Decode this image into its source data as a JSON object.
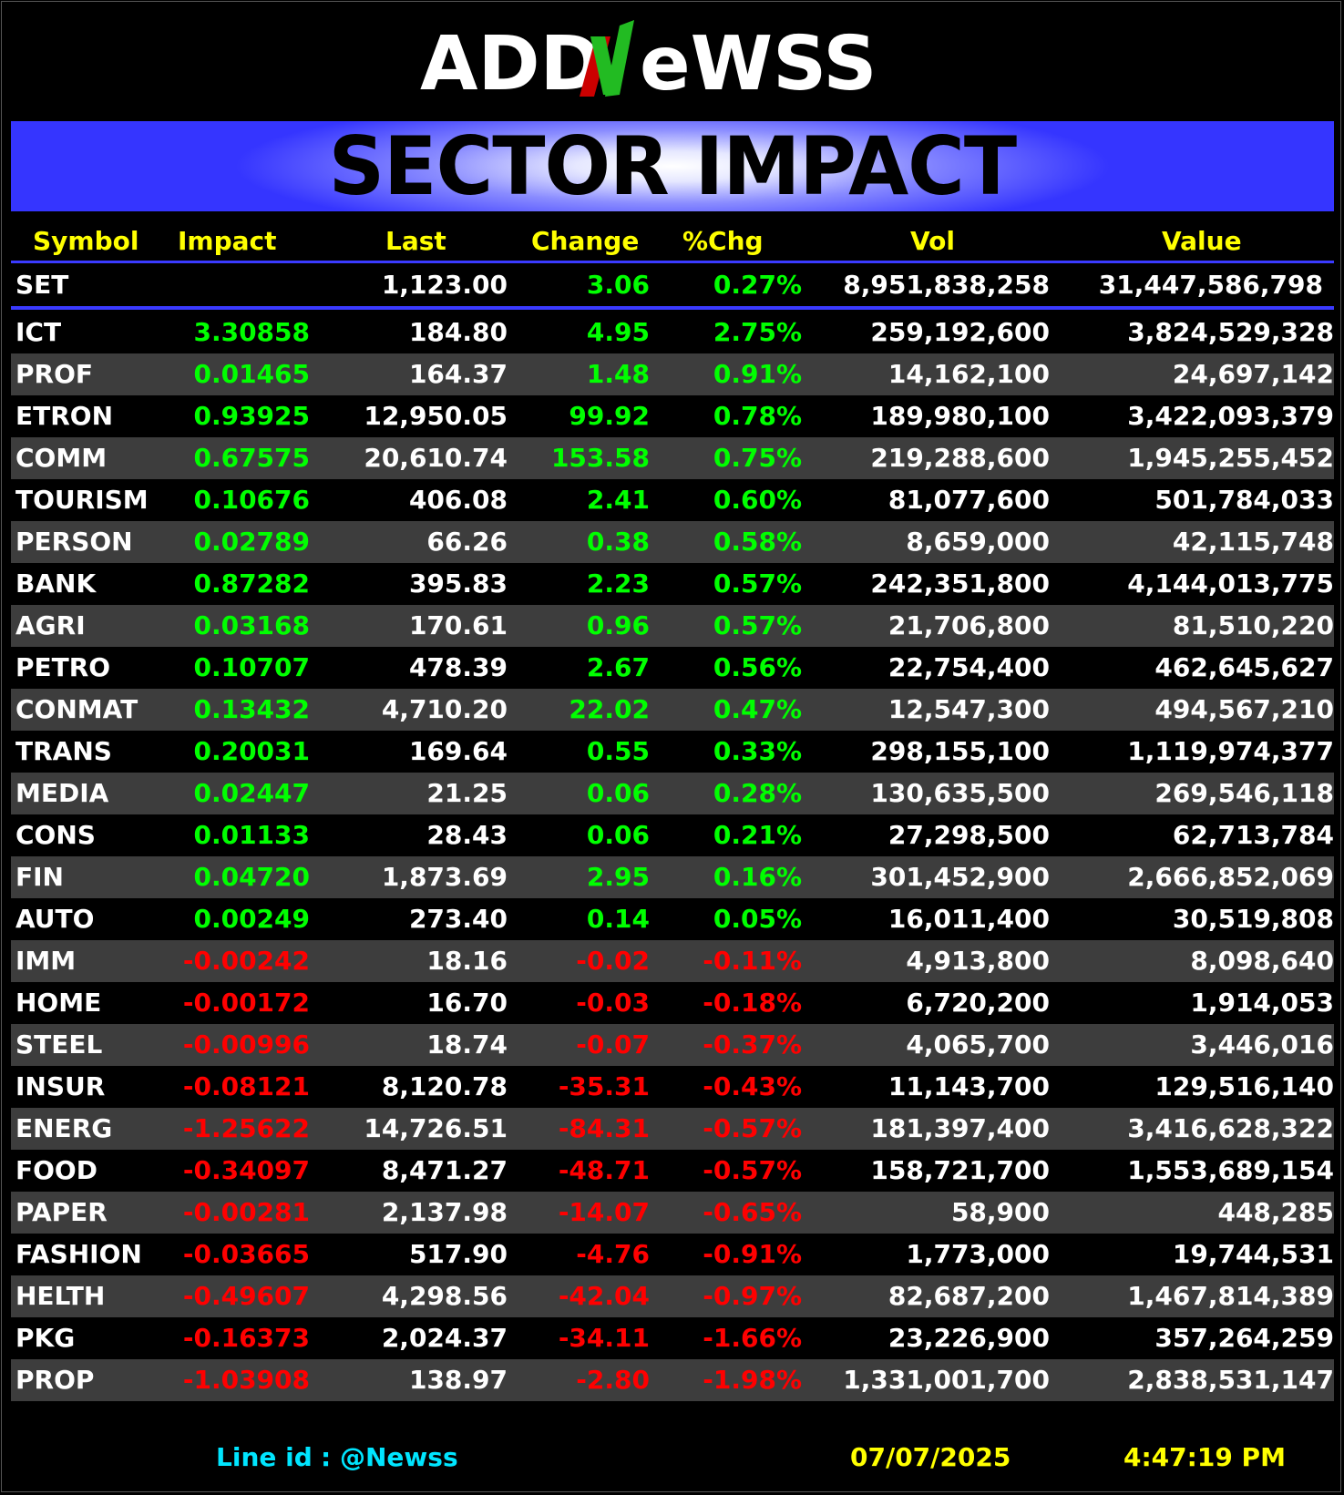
{
  "logo": {
    "text_left": "ADD",
    "text_right": "eWSS",
    "colors": {
      "white": "#ffffff",
      "green": "#22bb22",
      "red": "#cc0000"
    }
  },
  "title": "SECTOR IMPACT",
  "columns": [
    "Symbol",
    "Impact",
    "Last",
    "Change",
    "%Chg",
    "Vol",
    "Value"
  ],
  "index_row": {
    "symbol": "SET",
    "impact": "",
    "last": "1,123.00",
    "change": "3.06",
    "pct": "0.27%",
    "vol": "8,951,838,258",
    "value": "31,447,586,798"
  },
  "rows": [
    {
      "symbol": "ICT",
      "impact": "3.30858",
      "last": "184.80",
      "change": "4.95",
      "pct": "2.75%",
      "vol": "259,192,600",
      "value": "3,824,529,328",
      "dir": "pos"
    },
    {
      "symbol": "PROF",
      "impact": "0.01465",
      "last": "164.37",
      "change": "1.48",
      "pct": "0.91%",
      "vol": "14,162,100",
      "value": "24,697,142",
      "dir": "pos"
    },
    {
      "symbol": "ETRON",
      "impact": "0.93925",
      "last": "12,950.05",
      "change": "99.92",
      "pct": "0.78%",
      "vol": "189,980,100",
      "value": "3,422,093,379",
      "dir": "pos"
    },
    {
      "symbol": "COMM",
      "impact": "0.67575",
      "last": "20,610.74",
      "change": "153.58",
      "pct": "0.75%",
      "vol": "219,288,600",
      "value": "1,945,255,452",
      "dir": "pos"
    },
    {
      "symbol": "TOURISM",
      "impact": "0.10676",
      "last": "406.08",
      "change": "2.41",
      "pct": "0.60%",
      "vol": "81,077,600",
      "value": "501,784,033",
      "dir": "pos"
    },
    {
      "symbol": "PERSON",
      "impact": "0.02789",
      "last": "66.26",
      "change": "0.38",
      "pct": "0.58%",
      "vol": "8,659,000",
      "value": "42,115,748",
      "dir": "pos"
    },
    {
      "symbol": "BANK",
      "impact": "0.87282",
      "last": "395.83",
      "change": "2.23",
      "pct": "0.57%",
      "vol": "242,351,800",
      "value": "4,144,013,775",
      "dir": "pos"
    },
    {
      "symbol": "AGRI",
      "impact": "0.03168",
      "last": "170.61",
      "change": "0.96",
      "pct": "0.57%",
      "vol": "21,706,800",
      "value": "81,510,220",
      "dir": "pos"
    },
    {
      "symbol": "PETRO",
      "impact": "0.10707",
      "last": "478.39",
      "change": "2.67",
      "pct": "0.56%",
      "vol": "22,754,400",
      "value": "462,645,627",
      "dir": "pos"
    },
    {
      "symbol": "CONMAT",
      "impact": "0.13432",
      "last": "4,710.20",
      "change": "22.02",
      "pct": "0.47%",
      "vol": "12,547,300",
      "value": "494,567,210",
      "dir": "pos"
    },
    {
      "symbol": "TRANS",
      "impact": "0.20031",
      "last": "169.64",
      "change": "0.55",
      "pct": "0.33%",
      "vol": "298,155,100",
      "value": "1,119,974,377",
      "dir": "pos"
    },
    {
      "symbol": "MEDIA",
      "impact": "0.02447",
      "last": "21.25",
      "change": "0.06",
      "pct": "0.28%",
      "vol": "130,635,500",
      "value": "269,546,118",
      "dir": "pos"
    },
    {
      "symbol": "CONS",
      "impact": "0.01133",
      "last": "28.43",
      "change": "0.06",
      "pct": "0.21%",
      "vol": "27,298,500",
      "value": "62,713,784",
      "dir": "pos"
    },
    {
      "symbol": "FIN",
      "impact": "0.04720",
      "last": "1,873.69",
      "change": "2.95",
      "pct": "0.16%",
      "vol": "301,452,900",
      "value": "2,666,852,069",
      "dir": "pos"
    },
    {
      "symbol": "AUTO",
      "impact": "0.00249",
      "last": "273.40",
      "change": "0.14",
      "pct": "0.05%",
      "vol": "16,011,400",
      "value": "30,519,808",
      "dir": "pos"
    },
    {
      "symbol": "IMM",
      "impact": "-0.00242",
      "last": "18.16",
      "change": "-0.02",
      "pct": "-0.11%",
      "vol": "4,913,800",
      "value": "8,098,640",
      "dir": "neg"
    },
    {
      "symbol": "HOME",
      "impact": "-0.00172",
      "last": "16.70",
      "change": "-0.03",
      "pct": "-0.18%",
      "vol": "6,720,200",
      "value": "1,914,053",
      "dir": "neg"
    },
    {
      "symbol": "STEEL",
      "impact": "-0.00996",
      "last": "18.74",
      "change": "-0.07",
      "pct": "-0.37%",
      "vol": "4,065,700",
      "value": "3,446,016",
      "dir": "neg"
    },
    {
      "symbol": "INSUR",
      "impact": "-0.08121",
      "last": "8,120.78",
      "change": "-35.31",
      "pct": "-0.43%",
      "vol": "11,143,700",
      "value": "129,516,140",
      "dir": "neg"
    },
    {
      "symbol": "ENERG",
      "impact": "-1.25622",
      "last": "14,726.51",
      "change": "-84.31",
      "pct": "-0.57%",
      "vol": "181,397,400",
      "value": "3,416,628,322",
      "dir": "neg"
    },
    {
      "symbol": "FOOD",
      "impact": "-0.34097",
      "last": "8,471.27",
      "change": "-48.71",
      "pct": "-0.57%",
      "vol": "158,721,700",
      "value": "1,553,689,154",
      "dir": "neg"
    },
    {
      "symbol": "PAPER",
      "impact": "-0.00281",
      "last": "2,137.98",
      "change": "-14.07",
      "pct": "-0.65%",
      "vol": "58,900",
      "value": "448,285",
      "dir": "neg"
    },
    {
      "symbol": "FASHION",
      "impact": "-0.03665",
      "last": "517.90",
      "change": "-4.76",
      "pct": "-0.91%",
      "vol": "1,773,000",
      "value": "19,744,531",
      "dir": "neg"
    },
    {
      "symbol": "HELTH",
      "impact": "-0.49607",
      "last": "4,298.56",
      "change": "-42.04",
      "pct": "-0.97%",
      "vol": "82,687,200",
      "value": "1,467,814,389",
      "dir": "neg"
    },
    {
      "symbol": "PKG",
      "impact": "-0.16373",
      "last": "2,024.37",
      "change": "-34.11",
      "pct": "-1.66%",
      "vol": "23,226,900",
      "value": "357,264,259",
      "dir": "neg"
    },
    {
      "symbol": "PROP",
      "impact": "-1.03908",
      "last": "138.97",
      "change": "-2.80",
      "pct": "-1.98%",
      "vol": "1,331,001,700",
      "value": "2,838,531,147",
      "dir": "neg"
    }
  ],
  "footer": {
    "line_id_label": "Line id",
    "line_id_sep": ":",
    "line_id_value": "@Newss",
    "date": "07/07/2025",
    "time": "4:47:19 PM"
  },
  "colors": {
    "header_text": "#ffff00",
    "positive": "#00ff00",
    "negative": "#ff0000",
    "accent_line": "#3a3aff",
    "banner": "#3535ff",
    "footer_cyan": "#00e5ff",
    "footer_yellow": "#ffff00",
    "alt_row": "#3d3d3d"
  }
}
